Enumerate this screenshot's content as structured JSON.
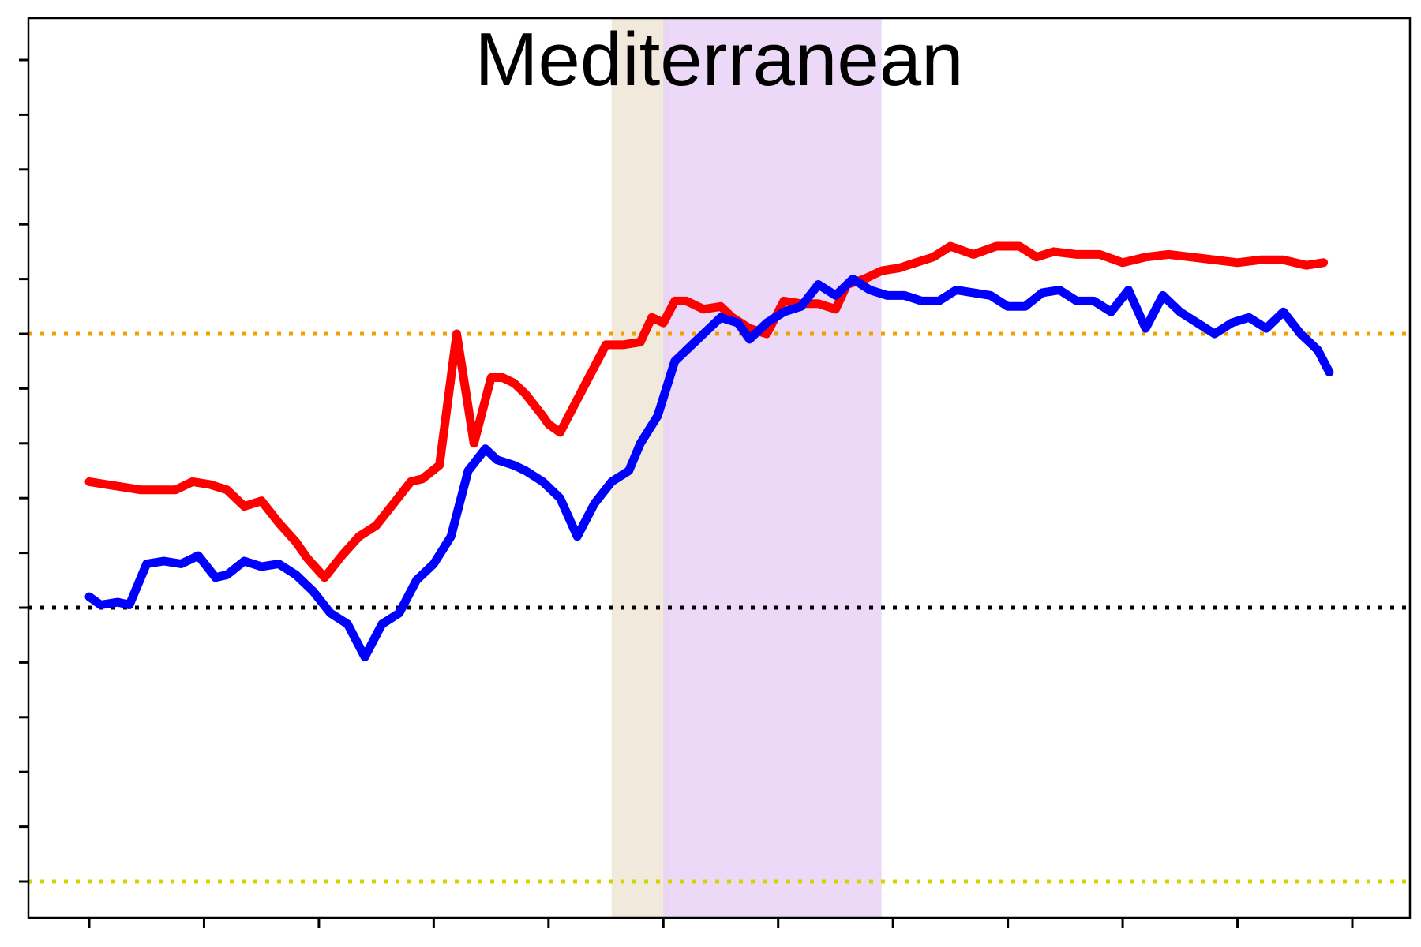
{
  "chart_data": {
    "type": "line",
    "title": "Mediterranean",
    "xlabel": "",
    "ylabel": "",
    "xlim": [
      -1,
      22
    ],
    "ylim": [
      -5,
      11
    ],
    "x_ticks": [
      0,
      2,
      4,
      6,
      8,
      10,
      12,
      14,
      16,
      18,
      20,
      22
    ],
    "y_ticks": [
      -5,
      -4,
      -3,
      -2,
      -1,
      0,
      1,
      2,
      3,
      4,
      5,
      6,
      7,
      8,
      9,
      10
    ],
    "grid": false,
    "legend": "none",
    "shaded_regions": [
      {
        "x": [
          9.1,
          10.1
        ],
        "color": "#ede5d6"
      },
      {
        "x": [
          10.0,
          13.8
        ],
        "color": "#e8d2f6"
      }
    ],
    "reference_lines": [
      {
        "y": 5.0,
        "color": "#f0a000"
      },
      {
        "y": 0.0,
        "color": "#000000"
      },
      {
        "y": -5.0,
        "color": "#d4d400"
      }
    ],
    "series": [
      {
        "color": "#ff0000",
        "x": [
          0,
          0.3,
          0.6,
          0.9,
          1.2,
          1.5,
          1.8,
          2.1,
          2.4,
          2.7,
          3.0,
          3.3,
          3.6,
          3.8,
          4.1,
          4.4,
          4.7,
          5.0,
          5.3,
          5.6,
          5.8,
          6.1,
          6.4,
          6.7,
          7.0,
          7.2,
          7.4,
          7.6,
          7.75,
          7.9,
          8.0,
          8.2,
          8.4,
          8.7,
          9.0,
          9.3,
          9.6,
          9.8,
          10.0,
          10.2,
          10.4,
          10.7,
          11.0,
          11.2,
          11.5,
          11.8,
          12.1,
          12.4,
          12.7,
          13.0,
          13.2,
          13.5,
          13.8,
          14.1,
          14.4,
          14.7,
          15.0,
          15.4,
          15.8,
          16.2,
          16.5,
          16.8,
          17.2,
          17.6,
          18.0,
          18.4,
          18.8,
          19.2,
          19.6,
          20.0,
          20.4,
          20.8,
          21.2,
          21.5
        ],
        "values": [
          2.3,
          2.25,
          2.2,
          2.15,
          2.15,
          2.15,
          2.3,
          2.25,
          2.15,
          1.85,
          1.95,
          1.55,
          1.2,
          0.9,
          0.55,
          0.95,
          1.3,
          1.5,
          1.9,
          2.3,
          2.35,
          2.6,
          5.0,
          3.0,
          4.2,
          4.2,
          4.1,
          3.9,
          3.7,
          3.5,
          3.35,
          3.2,
          3.6,
          4.2,
          4.8,
          4.8,
          4.85,
          5.3,
          5.2,
          5.6,
          5.6,
          5.45,
          5.5,
          5.3,
          5.1,
          5.0,
          5.6,
          5.55,
          5.55,
          5.45,
          5.9,
          6.0,
          6.15,
          6.2,
          6.3,
          6.4,
          6.6,
          6.45,
          6.6,
          6.6,
          6.4,
          6.5,
          6.45,
          6.45,
          6.3,
          6.4,
          6.45,
          6.4,
          6.35,
          6.3,
          6.35,
          6.35,
          6.25,
          6.3
        ]
      },
      {
        "color": "#0000ff",
        "x": [
          0,
          0.2,
          0.5,
          0.7,
          1.0,
          1.3,
          1.6,
          1.9,
          2.2,
          2.4,
          2.7,
          3.0,
          3.3,
          3.6,
          3.9,
          4.2,
          4.5,
          4.8,
          5.1,
          5.4,
          5.7,
          6.0,
          6.3,
          6.6,
          6.9,
          7.1,
          7.4,
          7.6,
          7.9,
          8.2,
          8.5,
          8.8,
          9.1,
          9.4,
          9.6,
          9.9,
          10.2,
          10.6,
          11.0,
          11.3,
          11.5,
          11.8,
          12.1,
          12.4,
          12.7,
          13.0,
          13.3,
          13.6,
          13.9,
          14.2,
          14.5,
          14.8,
          15.1,
          15.4,
          15.7,
          16.0,
          16.3,
          16.6,
          16.9,
          17.2,
          17.5,
          17.8,
          18.1,
          18.4,
          18.7,
          19.0,
          19.3,
          19.6,
          19.9,
          20.2,
          20.5,
          20.8,
          21.1,
          21.4,
          21.6
        ],
        "values": [
          0.2,
          0.05,
          0.1,
          0.05,
          0.8,
          0.85,
          0.8,
          0.95,
          0.55,
          0.6,
          0.85,
          0.75,
          0.8,
          0.6,
          0.3,
          -0.1,
          -0.3,
          -0.9,
          -0.3,
          -0.1,
          0.5,
          0.8,
          1.3,
          2.5,
          2.9,
          2.7,
          2.6,
          2.5,
          2.3,
          2.0,
          1.3,
          1.9,
          2.3,
          2.5,
          3.0,
          3.5,
          4.5,
          4.9,
          5.3,
          5.2,
          4.9,
          5.2,
          5.4,
          5.5,
          5.9,
          5.7,
          6.0,
          5.8,
          5.7,
          5.7,
          5.6,
          5.6,
          5.8,
          5.75,
          5.7,
          5.5,
          5.5,
          5.75,
          5.8,
          5.6,
          5.6,
          5.4,
          5.8,
          5.1,
          5.7,
          5.4,
          5.2,
          5.0,
          5.2,
          5.3,
          5.1,
          5.4,
          5.0,
          4.7,
          4.3
        ]
      }
    ]
  }
}
